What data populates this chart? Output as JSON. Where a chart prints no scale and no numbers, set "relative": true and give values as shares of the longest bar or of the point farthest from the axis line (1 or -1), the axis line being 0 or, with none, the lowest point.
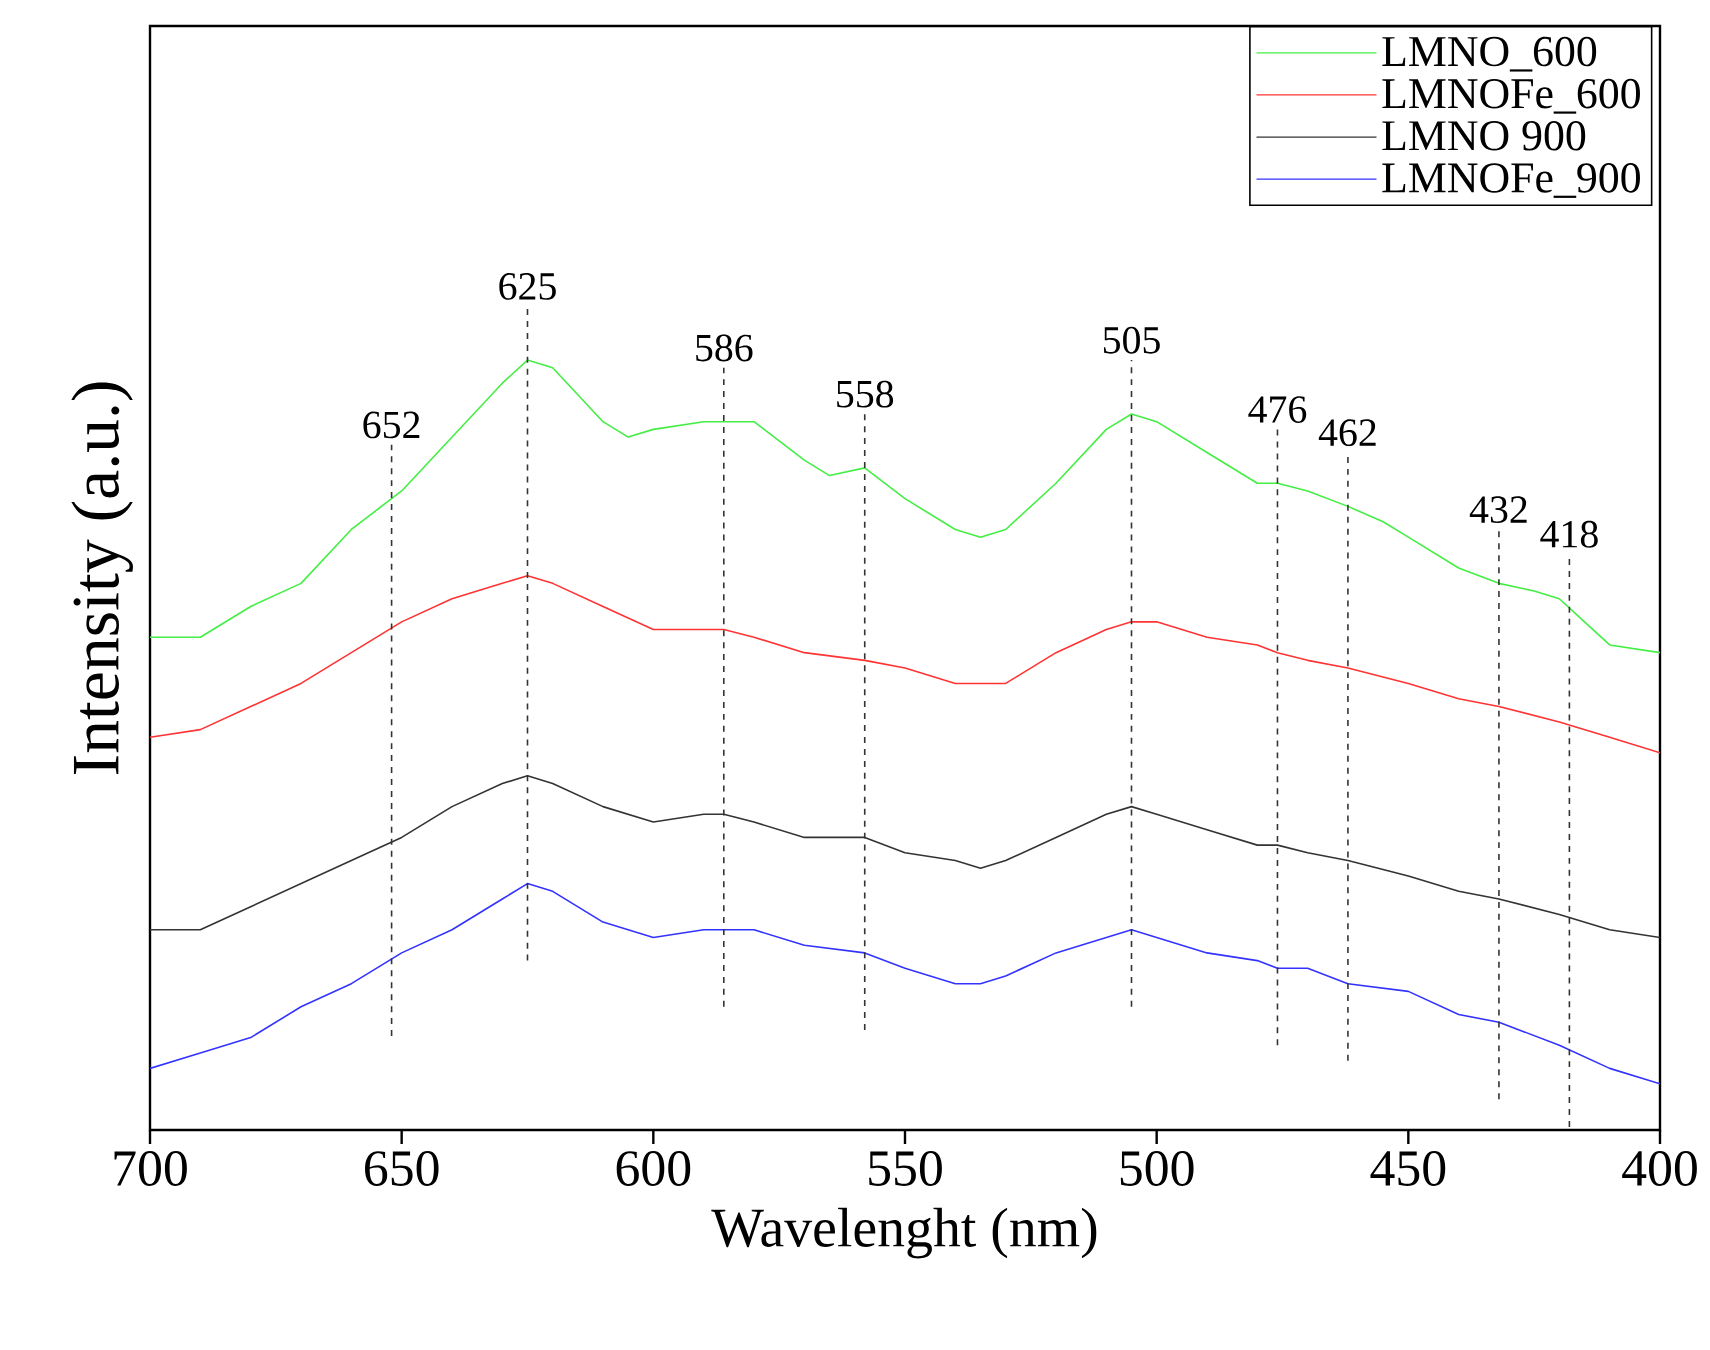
{
  "chart_data": {
    "type": "line",
    "xlabel": "Wavelenght (nm)",
    "ylabel": "Intensity (a.u.)",
    "relative": true,
    "xlim": [
      700,
      400
    ],
    "xticks": [
      700,
      650,
      600,
      550,
      500,
      450,
      400
    ],
    "legend": "top right",
    "grid": false,
    "tick_labels": "x",
    "x": [
      700,
      690,
      680,
      670,
      660,
      650,
      640,
      630,
      625,
      620,
      610,
      600,
      590,
      586,
      580,
      570,
      558,
      550,
      540,
      535,
      530,
      520,
      510,
      505,
      500,
      490,
      480,
      476,
      470,
      462,
      450,
      440,
      432,
      420,
      410,
      400
    ],
    "series": [
      {
        "name": "LMNO_600",
        "color": "#44ee44",
        "x": [
          700,
          690,
          680,
          670,
          660,
          650,
          640,
          630,
          625,
          620,
          610,
          605,
          600,
          590,
          586,
          580,
          570,
          565,
          558,
          550,
          540,
          535,
          530,
          520,
          510,
          505,
          500,
          490,
          480,
          476,
          470,
          462,
          455,
          450,
          440,
          432,
          425,
          420,
          415,
          410,
          400
        ],
        "values": [
          0.64,
          0.64,
          0.68,
          0.71,
          0.78,
          0.83,
          0.9,
          0.97,
          1.0,
          0.99,
          0.92,
          0.9,
          0.91,
          0.92,
          0.92,
          0.92,
          0.87,
          0.85,
          0.86,
          0.82,
          0.78,
          0.77,
          0.78,
          0.84,
          0.91,
          0.93,
          0.92,
          0.88,
          0.84,
          0.84,
          0.83,
          0.81,
          0.79,
          0.77,
          0.73,
          0.71,
          0.7,
          0.69,
          0.66,
          0.63,
          0.62
        ]
      },
      {
        "name": "LMNOFe_600",
        "color": "#ff3333",
        "values": [
          0.51,
          0.52,
          0.55,
          0.58,
          0.62,
          0.66,
          0.69,
          0.71,
          0.72,
          0.71,
          0.68,
          0.65,
          0.65,
          0.65,
          0.64,
          0.62,
          0.61,
          0.6,
          0.58,
          0.58,
          0.58,
          0.62,
          0.65,
          0.66,
          0.66,
          0.64,
          0.63,
          0.62,
          0.61,
          0.6,
          0.58,
          0.56,
          0.55,
          0.53,
          0.51,
          0.49
        ]
      },
      {
        "name": "LMNO 900",
        "color": "#333333",
        "values": [
          0.26,
          0.26,
          0.29,
          0.32,
          0.35,
          0.38,
          0.42,
          0.45,
          0.46,
          0.45,
          0.42,
          0.4,
          0.41,
          0.41,
          0.4,
          0.38,
          0.38,
          0.36,
          0.35,
          0.34,
          0.35,
          0.38,
          0.41,
          0.42,
          0.41,
          0.39,
          0.37,
          0.37,
          0.36,
          0.35,
          0.33,
          0.31,
          0.3,
          0.28,
          0.26,
          0.25
        ]
      },
      {
        "name": "LMNOFe_900",
        "color": "#3333ff",
        "values": [
          0.08,
          0.1,
          0.12,
          0.16,
          0.19,
          0.23,
          0.26,
          0.3,
          0.32,
          0.31,
          0.27,
          0.25,
          0.26,
          0.26,
          0.26,
          0.24,
          0.23,
          0.21,
          0.19,
          0.19,
          0.2,
          0.23,
          0.25,
          0.26,
          0.25,
          0.23,
          0.22,
          0.21,
          0.21,
          0.19,
          0.18,
          0.15,
          0.14,
          0.11,
          0.08,
          0.06
        ]
      }
    ],
    "ref_lines": [
      {
        "axis": "x",
        "value": 652,
        "label": "652",
        "color": "#333333",
        "line_style": "dashed"
      },
      {
        "axis": "x",
        "value": 625,
        "label": "625",
        "color": "#333333",
        "line_style": "dashed"
      },
      {
        "axis": "x",
        "value": 586,
        "label": "586",
        "color": "#333333",
        "line_style": "dashed"
      },
      {
        "axis": "x",
        "value": 558,
        "label": "558",
        "color": "#333333",
        "line_style": "dashed"
      },
      {
        "axis": "x",
        "value": 505,
        "label": "505",
        "color": "#333333",
        "line_style": "dashed"
      },
      {
        "axis": "x",
        "value": 476,
        "label": "476",
        "color": "#333333",
        "line_style": "dashed"
      },
      {
        "axis": "x",
        "value": 462,
        "label": "462",
        "color": "#333333",
        "line_style": "dashed"
      },
      {
        "axis": "x",
        "value": 432,
        "label": "432",
        "color": "#333333",
        "line_style": "dashed"
      },
      {
        "axis": "x",
        "value": 418,
        "label": "418",
        "color": "#333333",
        "line_style": "dashed"
      }
    ]
  }
}
